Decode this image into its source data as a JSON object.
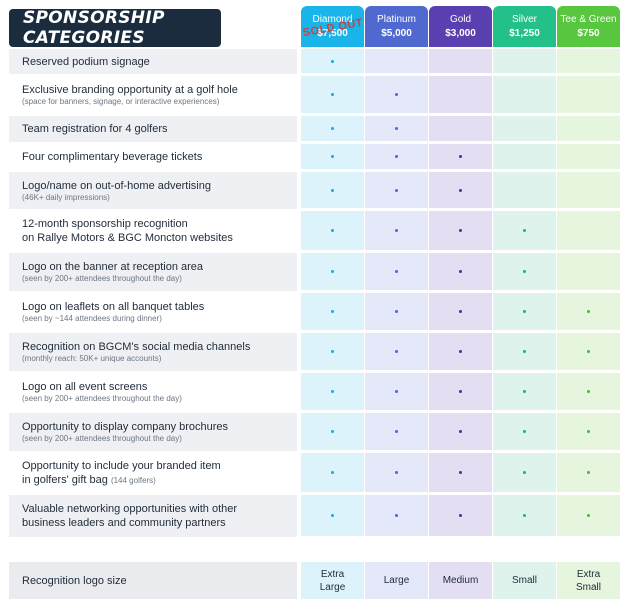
{
  "title": "SPONSORSHIP CATEGORIES",
  "sold_out": "SOLD OUT",
  "tiers": [
    {
      "name": "Diamond",
      "price": "$7,500",
      "header_color": "#19b4ea",
      "cell_color": "#dcf3fc",
      "dot_color": "#19a9dc"
    },
    {
      "name": "Platinum",
      "price": "$5,000",
      "header_color": "#4f69d0",
      "cell_color": "#e4e8f8",
      "dot_color": "#4f69d0"
    },
    {
      "name": "Gold",
      "price": "$3,000",
      "header_color": "#5a3fb0",
      "cell_color": "#e3def2",
      "dot_color": "#4a2f9c"
    },
    {
      "name": "Silver",
      "price": "$1,250",
      "header_color": "#24c089",
      "cell_color": "#def3ec",
      "dot_color": "#1fb07e"
    },
    {
      "name": "Tee & Green",
      "price": "$750",
      "header_color": "#58c63e",
      "cell_color": "#e6f5de",
      "dot_color": "#4cb83a"
    }
  ],
  "benefits": [
    {
      "label": "Reserved podium signage",
      "sub": "",
      "inline_sub": "",
      "tiers": [
        1,
        0,
        0,
        0,
        0
      ]
    },
    {
      "label": "Exclusive branding opportunity at a golf hole",
      "sub": "(space for banners, signage, or interactive experiences)",
      "inline_sub": "",
      "tiers": [
        1,
        1,
        0,
        0,
        0
      ]
    },
    {
      "label": "Team registration for 4 golfers",
      "sub": "",
      "inline_sub": "",
      "tiers": [
        1,
        1,
        0,
        0,
        0
      ]
    },
    {
      "label": "Four complimentary beverage tickets",
      "sub": "",
      "inline_sub": "",
      "tiers": [
        1,
        1,
        1,
        0,
        0
      ]
    },
    {
      "label": "Logo/name on out-of-home advertising",
      "sub": "(46K+ daily impressions)",
      "inline_sub": "",
      "tiers": [
        1,
        1,
        1,
        0,
        0
      ]
    },
    {
      "label": "12-month sponsorship recognition",
      "label2": "on Rallye Motors & BGC Moncton websites",
      "sub": "",
      "inline_sub": "",
      "tiers": [
        1,
        1,
        1,
        1,
        0
      ]
    },
    {
      "label": "Logo on the banner at reception area",
      "sub": "(seen by 200+ attendees throughout the day)",
      "inline_sub": "",
      "tiers": [
        1,
        1,
        1,
        1,
        0
      ]
    },
    {
      "label": "Logo on leaflets on all banquet tables",
      "sub": "(seen by ~144 attendees during dinner)",
      "inline_sub": "",
      "tiers": [
        1,
        1,
        1,
        1,
        1
      ]
    },
    {
      "label": "Recognition on BGCM's social media channels",
      "sub": "(monthly reach: 50K+ unique accounts)",
      "inline_sub": "",
      "tiers": [
        1,
        1,
        1,
        1,
        1
      ]
    },
    {
      "label": "Logo on all event screens",
      "sub": "(seen by 200+ attendees throughout the day)",
      "inline_sub": "",
      "tiers": [
        1,
        1,
        1,
        1,
        1
      ]
    },
    {
      "label": "Opportunity to display company brochures",
      "sub": "(seen by 200+ attendees throughout the day)",
      "inline_sub": "",
      "tiers": [
        1,
        1,
        1,
        1,
        1
      ]
    },
    {
      "label": "Opportunity to include your branded item",
      "label2": "in golfers' gift bag",
      "sub": "",
      "inline_sub": "(144 golfers)",
      "tiers": [
        1,
        1,
        1,
        1,
        1
      ]
    },
    {
      "label": "Valuable networking opportunities with other",
      "label2": "business leaders and community partners",
      "sub": "",
      "inline_sub": "",
      "tiers": [
        1,
        1,
        1,
        1,
        1
      ]
    }
  ],
  "logo_size": {
    "label": "Recognition logo size",
    "values": [
      [
        "Extra",
        "Large"
      ],
      [
        "Large"
      ],
      [
        "Medium"
      ],
      [
        "Small"
      ],
      [
        "Extra",
        "Small"
      ]
    ]
  }
}
